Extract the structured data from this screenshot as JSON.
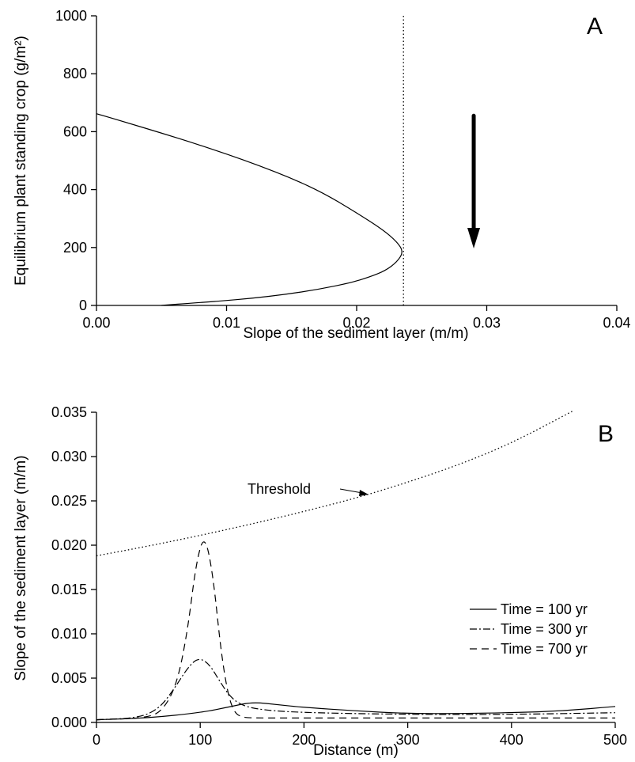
{
  "chart_data": [
    {
      "panel": "A",
      "type": "line",
      "xlabel": "Slope of the sediment layer (m/m)",
      "ylabel": "Equilibrium plant standing crop (g/m²)",
      "xlim": [
        0,
        0.04
      ],
      "ylim": [
        0,
        1000
      ],
      "xticks": [
        "0.00",
        "0.01",
        "0.02",
        "0.03",
        "0.04"
      ],
      "yticks": [
        "0",
        "200",
        "400",
        "600",
        "800",
        "1000"
      ],
      "vertical_line_x": 0.0236,
      "arrow": {
        "x": 0.029,
        "from_y": 655,
        "to_y": 235,
        "direction": "down"
      },
      "series": [
        {
          "style": "solid",
          "x": [
            0.0,
            0.0025,
            0.005,
            0.0075,
            0.01,
            0.0125,
            0.015,
            0.0175,
            0.02,
            0.022,
            0.0231,
            0.0236,
            0.0231,
            0.0222,
            0.021,
            0.0195,
            0.017,
            0.0145,
            0.012,
            0.0095,
            0.007,
            0.0055,
            0.005
          ],
          "y": [
            662,
            629,
            595,
            560,
            523,
            483,
            439,
            387,
            320,
            262,
            220,
            185,
            150,
            120,
            98,
            78,
            55,
            38,
            25,
            15,
            7,
            2,
            0
          ]
        }
      ]
    },
    {
      "panel": "B",
      "type": "line",
      "xlabel": "Distance (m)",
      "ylabel": "Slope of the sediment layer (m/m)",
      "xlim": [
        0,
        500
      ],
      "ylim": [
        0,
        0.035
      ],
      "xticks": [
        "0",
        "100",
        "200",
        "300",
        "400",
        "500"
      ],
      "yticks": [
        "0.000",
        "0.005",
        "0.010",
        "0.015",
        "0.020",
        "0.025",
        "0.030",
        "0.035"
      ],
      "annotation": "Threshold",
      "series": [
        {
          "name": "Time = 100 yr",
          "style": "solid",
          "x": [
            0,
            50,
            100,
            130,
            150,
            175,
            200,
            250,
            300,
            350,
            400,
            450,
            500
          ],
          "y": [
            0.0003,
            0.0005,
            0.0011,
            0.0018,
            0.0023,
            0.002,
            0.0017,
            0.0013,
            0.001,
            0.001,
            0.0011,
            0.0013,
            0.0018
          ]
        },
        {
          "name": "Time = 300 yr",
          "style": "dash-dot",
          "x": [
            0,
            40,
            60,
            75,
            88,
            98,
            108,
            118,
            128,
            140,
            160,
            200,
            300,
            400,
            500
          ],
          "y": [
            0.0003,
            0.0005,
            0.0015,
            0.0038,
            0.0062,
            0.0073,
            0.0067,
            0.0048,
            0.003,
            0.0019,
            0.0014,
            0.0011,
            0.0009,
            0.0009,
            0.0011
          ]
        },
        {
          "name": "Time = 700 yr",
          "style": "dashed",
          "x": [
            0,
            50,
            65,
            78,
            88,
            96,
            104,
            112,
            120,
            127,
            133,
            140,
            150,
            200,
            300,
            400,
            500
          ],
          "y": [
            0.0003,
            0.0005,
            0.0015,
            0.0045,
            0.0105,
            0.018,
            0.0213,
            0.017,
            0.008,
            0.003,
            0.0011,
            0.0006,
            0.0005,
            0.0005,
            0.0005,
            0.0005,
            0.0005
          ]
        },
        {
          "name": "Threshold",
          "style": "dotted",
          "x": [
            0,
            50,
            100,
            150,
            200,
            250,
            300,
            350,
            400,
            460
          ],
          "y": [
            0.0188,
            0.0199,
            0.0211,
            0.0224,
            0.0238,
            0.0253,
            0.0271,
            0.0291,
            0.0315,
            0.0352
          ]
        }
      ]
    }
  ]
}
